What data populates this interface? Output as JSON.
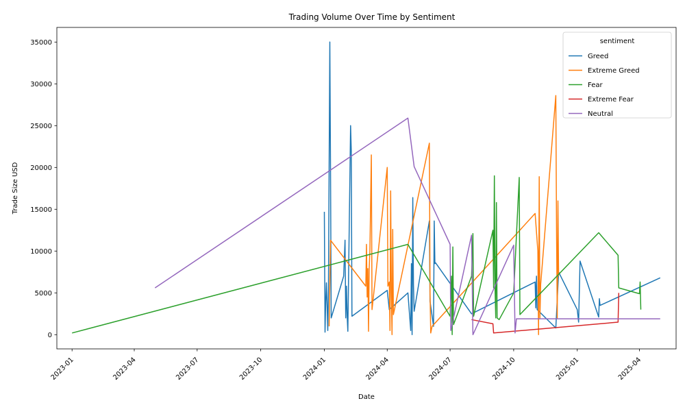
{
  "chart_data": {
    "type": "line",
    "title": "Trading Volume Over Time by Sentiment",
    "xlabel": "Date",
    "ylabel": "Trade Size USD",
    "x_range": [
      "2022-12-10",
      "2025-05-24"
    ],
    "ylim": [
      -1700,
      36750
    ],
    "y_ticks": [
      0,
      5000,
      10000,
      15000,
      20000,
      25000,
      30000,
      35000
    ],
    "y_tick_labels": [
      "0",
      "5000",
      "10000",
      "15000",
      "20000",
      "25000",
      "30000",
      "35000"
    ],
    "x_ticks": [
      "2023-01-01",
      "2023-04-01",
      "2023-07-01",
      "2023-10-01",
      "2024-01-01",
      "2024-04-01",
      "2024-07-01",
      "2024-10-01",
      "2025-01-01",
      "2025-04-01"
    ],
    "x_tick_labels": [
      "2023-01",
      "2023-04",
      "2023-07",
      "2023-10",
      "2024-01",
      "2024-04",
      "2024-07",
      "2024-10",
      "2025-01",
      "2025-04"
    ],
    "grid": false,
    "legend": {
      "title": "sentiment",
      "position": "top-right"
    },
    "series": [
      {
        "name": "Greed",
        "color": "#1f77b4",
        "points": [
          [
            "2024-01-01",
            14700
          ],
          [
            "2024-01-02",
            300
          ],
          [
            "2024-01-03",
            4000
          ],
          [
            "2024-01-04",
            6200
          ],
          [
            "2024-01-05",
            3500
          ],
          [
            "2024-01-06",
            500
          ],
          [
            "2024-01-07",
            5500
          ],
          [
            "2024-01-09",
            35000
          ],
          [
            "2024-01-10",
            20000
          ],
          [
            "2024-01-11",
            2000
          ],
          [
            "2024-01-29",
            7000
          ],
          [
            "2024-01-31",
            11300
          ],
          [
            "2024-02-01",
            2000
          ],
          [
            "2024-02-02",
            5800
          ],
          [
            "2024-02-03",
            2200
          ],
          [
            "2024-02-04",
            400
          ],
          [
            "2024-02-08",
            25000
          ],
          [
            "2024-02-09",
            22000
          ],
          [
            "2024-02-10",
            2200
          ],
          [
            "2024-04-01",
            5300
          ],
          [
            "2024-04-04",
            3000
          ],
          [
            "2024-05-01",
            5000
          ],
          [
            "2024-05-05",
            500
          ],
          [
            "2024-05-06",
            8500
          ],
          [
            "2024-05-07",
            0
          ],
          [
            "2024-05-08",
            16400
          ],
          [
            "2024-05-09",
            6000
          ],
          [
            "2024-05-10",
            2800
          ],
          [
            "2024-06-01",
            13600
          ],
          [
            "2024-06-02",
            4000
          ],
          [
            "2024-06-07",
            1000
          ],
          [
            "2024-06-08",
            13600
          ],
          [
            "2024-06-09",
            8500
          ],
          [
            "2024-06-10",
            8600
          ],
          [
            "2024-08-01",
            2500
          ],
          [
            "2024-11-01",
            6300
          ],
          [
            "2024-11-02",
            3200
          ],
          [
            "2024-11-03",
            7000
          ],
          [
            "2024-11-04",
            3000
          ],
          [
            "2024-12-01",
            800
          ],
          [
            "2024-12-05",
            7500
          ],
          [
            "2025-01-01",
            3000
          ],
          [
            "2025-01-03",
            1500
          ],
          [
            "2025-01-05",
            8800
          ],
          [
            "2025-02-01",
            2100
          ],
          [
            "2025-02-02",
            4300
          ],
          [
            "2025-02-03",
            3500
          ],
          [
            "2025-05-01",
            6800
          ]
        ]
      },
      {
        "name": "Extreme Greed",
        "color": "#ff7f0e",
        "points": [
          [
            "2024-01-08",
            1000
          ],
          [
            "2024-01-10",
            11300
          ],
          [
            "2024-03-01",
            5800
          ],
          [
            "2024-03-02",
            10800
          ],
          [
            "2024-03-03",
            4500
          ],
          [
            "2024-03-04",
            7900
          ],
          [
            "2024-03-05",
            400
          ],
          [
            "2024-03-06",
            8000
          ],
          [
            "2024-03-07",
            10000
          ],
          [
            "2024-03-09",
            21500
          ],
          [
            "2024-03-10",
            3000
          ],
          [
            "2024-04-01",
            20000
          ],
          [
            "2024-04-02",
            5800
          ],
          [
            "2024-04-04",
            6300
          ],
          [
            "2024-04-05",
            500
          ],
          [
            "2024-04-06",
            17200
          ],
          [
            "2024-04-07",
            5000
          ],
          [
            "2024-04-08",
            0
          ],
          [
            "2024-04-09",
            12600
          ],
          [
            "2024-04-10",
            2400
          ],
          [
            "2024-06-01",
            22900
          ],
          [
            "2024-06-02",
            5000
          ],
          [
            "2024-06-03",
            200
          ],
          [
            "2024-06-05",
            1000
          ],
          [
            "2024-11-01",
            14500
          ],
          [
            "2024-11-05",
            10000
          ],
          [
            "2024-11-06",
            0
          ],
          [
            "2024-11-07",
            18900
          ],
          [
            "2024-11-08",
            2000
          ],
          [
            "2024-11-09",
            6000
          ],
          [
            "2024-12-01",
            28600
          ],
          [
            "2024-12-02",
            12000
          ],
          [
            "2024-12-03",
            2000
          ],
          [
            "2024-12-04",
            16000
          ],
          [
            "2024-12-05",
            7000
          ]
        ]
      },
      {
        "name": "Fear",
        "color": "#2ca02c",
        "points": [
          [
            "2023-01-01",
            200
          ],
          [
            "2024-05-01",
            10800
          ],
          [
            "2024-07-01",
            2200
          ],
          [
            "2024-07-03",
            7000
          ],
          [
            "2024-07-04",
            0
          ],
          [
            "2024-07-05",
            10500
          ],
          [
            "2024-07-06",
            1200
          ],
          [
            "2024-08-01",
            7000
          ],
          [
            "2024-08-03",
            12100
          ],
          [
            "2024-08-04",
            2200
          ],
          [
            "2024-09-01",
            12500
          ],
          [
            "2024-09-02",
            5600
          ],
          [
            "2024-09-03",
            19000
          ],
          [
            "2024-09-04",
            5500
          ],
          [
            "2024-09-05",
            2000
          ],
          [
            "2024-09-06",
            15800
          ],
          [
            "2024-09-07",
            2000
          ],
          [
            "2024-09-10",
            1800
          ],
          [
            "2024-10-01",
            5000
          ],
          [
            "2024-10-09",
            18800
          ],
          [
            "2024-10-10",
            2400
          ],
          [
            "2025-02-01",
            12200
          ],
          [
            "2025-03-01",
            9500
          ],
          [
            "2025-03-02",
            5600
          ],
          [
            "2025-04-01",
            4900
          ],
          [
            "2025-04-02",
            6300
          ],
          [
            "2025-04-03",
            3000
          ]
        ]
      },
      {
        "name": "Extreme Fear",
        "color": "#d62728",
        "points": [
          [
            "2024-08-01",
            1800
          ],
          [
            "2024-09-01",
            1300
          ],
          [
            "2024-09-02",
            200
          ],
          [
            "2025-03-01",
            1500
          ],
          [
            "2025-03-02",
            5000
          ]
        ]
      },
      {
        "name": "Neutral",
        "color": "#9467bd",
        "points": [
          [
            "2023-05-01",
            5600
          ],
          [
            "2024-05-01",
            25900
          ],
          [
            "2024-05-10",
            20100
          ],
          [
            "2024-07-01",
            10800
          ],
          [
            "2024-07-02",
            500
          ],
          [
            "2024-08-01",
            11900
          ],
          [
            "2024-08-03",
            0
          ],
          [
            "2024-10-01",
            10700
          ],
          [
            "2024-10-03",
            200
          ],
          [
            "2024-10-05",
            1900
          ],
          [
            "2025-05-01",
            1900
          ]
        ]
      }
    ]
  }
}
